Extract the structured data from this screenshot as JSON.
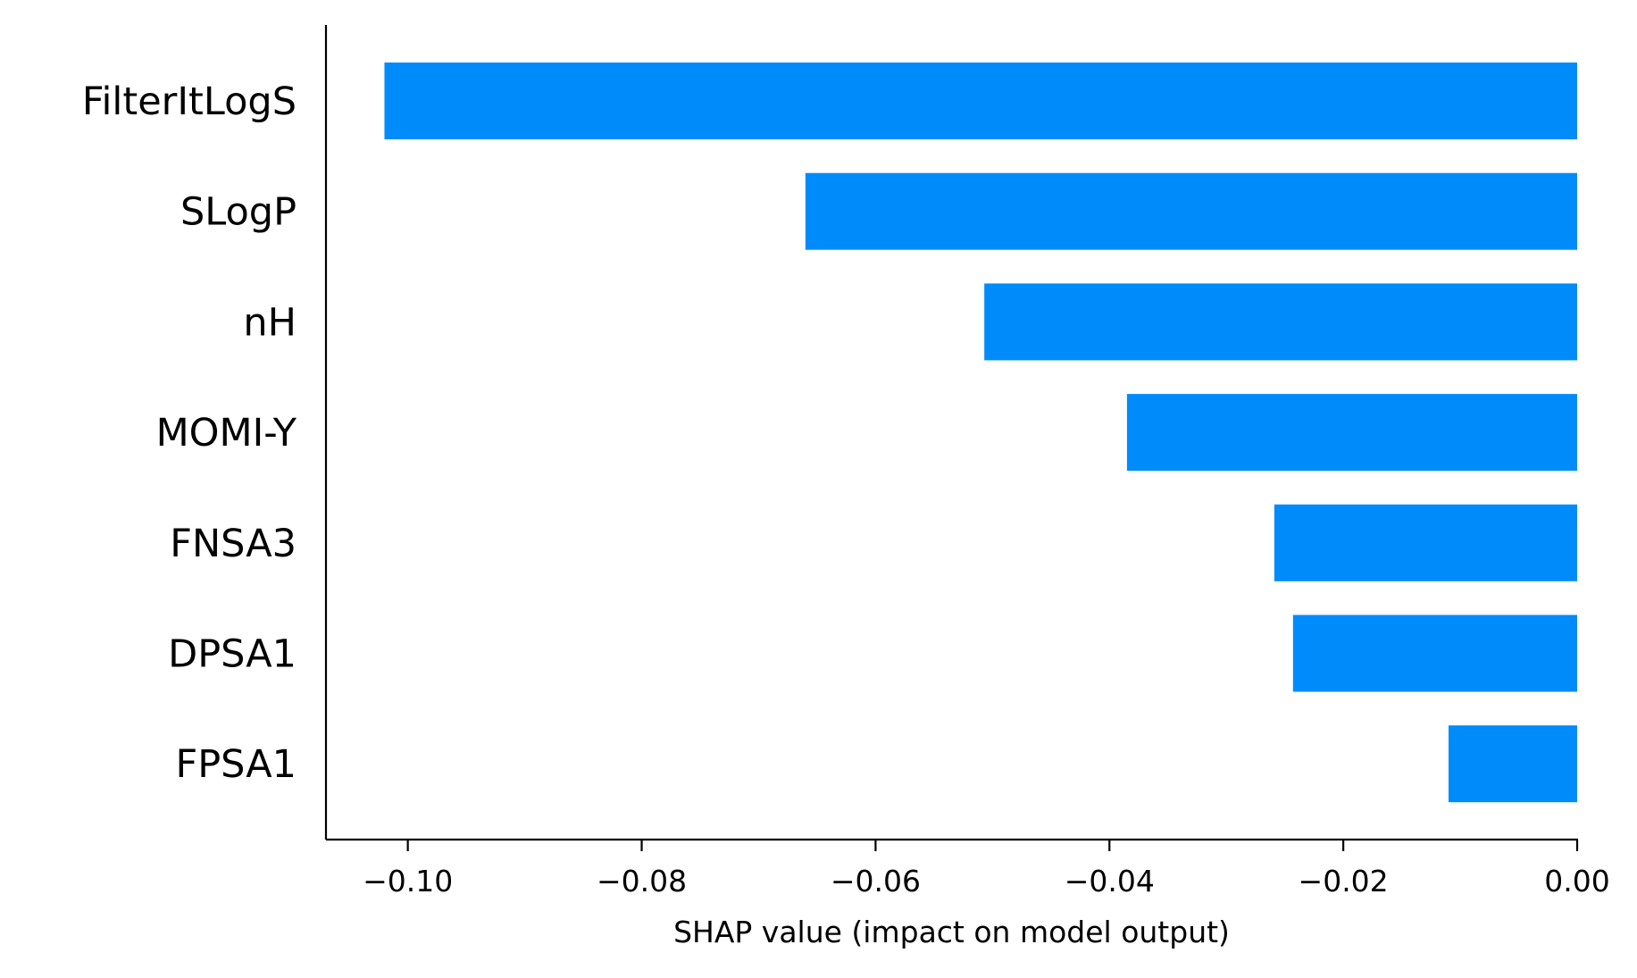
{
  "chart_data": {
    "type": "bar",
    "orientation": "horizontal",
    "title": "",
    "xlabel": "SHAP value (impact on model output)",
    "ylabel": "",
    "categories": [
      "FilterItLogS",
      "SLogP",
      "nH",
      "MOMI-Y",
      "FNSA3",
      "DPSA1",
      "FPSA1"
    ],
    "values": [
      -0.102,
      -0.066,
      -0.0507,
      -0.0385,
      -0.0259,
      -0.0243,
      -0.011
    ],
    "xlim": [
      -0.107,
      0.0
    ],
    "xticks": [
      -0.1,
      -0.08,
      -0.06,
      -0.04,
      -0.02,
      0.0
    ],
    "xtick_labels": [
      "−0.10",
      "−0.08",
      "−0.06",
      "−0.04",
      "−0.02",
      "0.00"
    ],
    "bar_color": "#008bfb",
    "grid": false,
    "legend": "none"
  }
}
